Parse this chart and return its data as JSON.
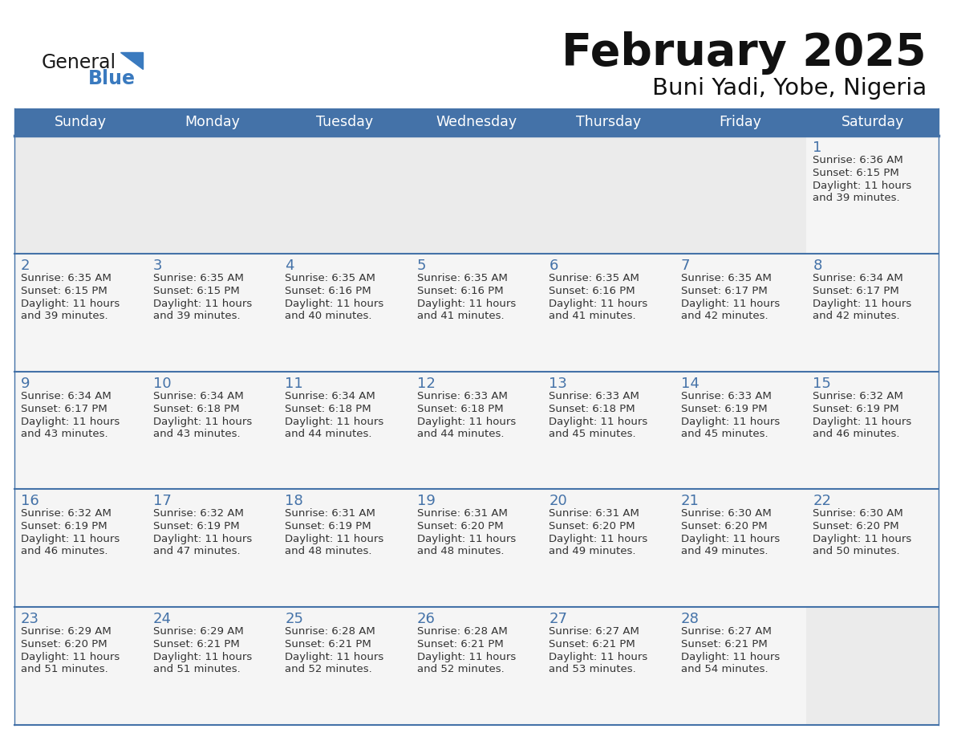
{
  "title": "February 2025",
  "subtitle": "Buni Yadi, Yobe, Nigeria",
  "header_bg_color": "#4472a8",
  "header_text_color": "#ffffff",
  "day_names": [
    "Sunday",
    "Monday",
    "Tuesday",
    "Wednesday",
    "Thursday",
    "Friday",
    "Saturday"
  ],
  "bg_color": "#ffffff",
  "cell_bg_empty": "#ebebeb",
  "cell_bg_filled": "#f5f5f5",
  "row_separator_color": "#4472a8",
  "date_color": "#4472a8",
  "text_color": "#333333",
  "logo_general_color": "#1a1a1a",
  "logo_blue_color": "#3a7abf",
  "calendar_data": [
    [
      null,
      null,
      null,
      null,
      null,
      null,
      {
        "day": 1,
        "sunrise": "6:36 AM",
        "sunset": "6:15 PM",
        "daylight": "11 hours and 39 minutes."
      }
    ],
    [
      {
        "day": 2,
        "sunrise": "6:35 AM",
        "sunset": "6:15 PM",
        "daylight": "11 hours and 39 minutes."
      },
      {
        "day": 3,
        "sunrise": "6:35 AM",
        "sunset": "6:15 PM",
        "daylight": "11 hours and 39 minutes."
      },
      {
        "day": 4,
        "sunrise": "6:35 AM",
        "sunset": "6:16 PM",
        "daylight": "11 hours and 40 minutes."
      },
      {
        "day": 5,
        "sunrise": "6:35 AM",
        "sunset": "6:16 PM",
        "daylight": "11 hours and 41 minutes."
      },
      {
        "day": 6,
        "sunrise": "6:35 AM",
        "sunset": "6:16 PM",
        "daylight": "11 hours and 41 minutes."
      },
      {
        "day": 7,
        "sunrise": "6:35 AM",
        "sunset": "6:17 PM",
        "daylight": "11 hours and 42 minutes."
      },
      {
        "day": 8,
        "sunrise": "6:34 AM",
        "sunset": "6:17 PM",
        "daylight": "11 hours and 42 minutes."
      }
    ],
    [
      {
        "day": 9,
        "sunrise": "6:34 AM",
        "sunset": "6:17 PM",
        "daylight": "11 hours and 43 minutes."
      },
      {
        "day": 10,
        "sunrise": "6:34 AM",
        "sunset": "6:18 PM",
        "daylight": "11 hours and 43 minutes."
      },
      {
        "day": 11,
        "sunrise": "6:34 AM",
        "sunset": "6:18 PM",
        "daylight": "11 hours and 44 minutes."
      },
      {
        "day": 12,
        "sunrise": "6:33 AM",
        "sunset": "6:18 PM",
        "daylight": "11 hours and 44 minutes."
      },
      {
        "day": 13,
        "sunrise": "6:33 AM",
        "sunset": "6:18 PM",
        "daylight": "11 hours and 45 minutes."
      },
      {
        "day": 14,
        "sunrise": "6:33 AM",
        "sunset": "6:19 PM",
        "daylight": "11 hours and 45 minutes."
      },
      {
        "day": 15,
        "sunrise": "6:32 AM",
        "sunset": "6:19 PM",
        "daylight": "11 hours and 46 minutes."
      }
    ],
    [
      {
        "day": 16,
        "sunrise": "6:32 AM",
        "sunset": "6:19 PM",
        "daylight": "11 hours and 46 minutes."
      },
      {
        "day": 17,
        "sunrise": "6:32 AM",
        "sunset": "6:19 PM",
        "daylight": "11 hours and 47 minutes."
      },
      {
        "day": 18,
        "sunrise": "6:31 AM",
        "sunset": "6:19 PM",
        "daylight": "11 hours and 48 minutes."
      },
      {
        "day": 19,
        "sunrise": "6:31 AM",
        "sunset": "6:20 PM",
        "daylight": "11 hours and 48 minutes."
      },
      {
        "day": 20,
        "sunrise": "6:31 AM",
        "sunset": "6:20 PM",
        "daylight": "11 hours and 49 minutes."
      },
      {
        "day": 21,
        "sunrise": "6:30 AM",
        "sunset": "6:20 PM",
        "daylight": "11 hours and 49 minutes."
      },
      {
        "day": 22,
        "sunrise": "6:30 AM",
        "sunset": "6:20 PM",
        "daylight": "11 hours and 50 minutes."
      }
    ],
    [
      {
        "day": 23,
        "sunrise": "6:29 AM",
        "sunset": "6:20 PM",
        "daylight": "11 hours and 51 minutes."
      },
      {
        "day": 24,
        "sunrise": "6:29 AM",
        "sunset": "6:21 PM",
        "daylight": "11 hours and 51 minutes."
      },
      {
        "day": 25,
        "sunrise": "6:28 AM",
        "sunset": "6:21 PM",
        "daylight": "11 hours and 52 minutes."
      },
      {
        "day": 26,
        "sunrise": "6:28 AM",
        "sunset": "6:21 PM",
        "daylight": "11 hours and 52 minutes."
      },
      {
        "day": 27,
        "sunrise": "6:27 AM",
        "sunset": "6:21 PM",
        "daylight": "11 hours and 53 minutes."
      },
      {
        "day": 28,
        "sunrise": "6:27 AM",
        "sunset": "6:21 PM",
        "daylight": "11 hours and 54 minutes."
      },
      null
    ]
  ]
}
